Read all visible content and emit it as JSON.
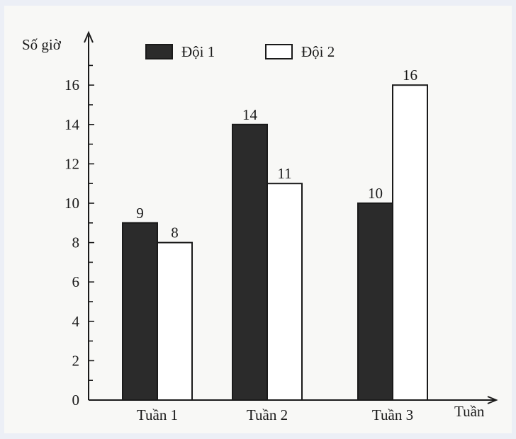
{
  "chart_data": {
    "type": "bar",
    "title": "",
    "xlabel": "Tuần",
    "ylabel": "Số giờ",
    "categories": [
      "Tuần 1",
      "Tuần 2",
      "Tuần 3"
    ],
    "series": [
      {
        "name": "Đội 1",
        "values": [
          9,
          14,
          10
        ],
        "color": "#2b2b2b"
      },
      {
        "name": "Đội 2",
        "values": [
          8,
          11,
          16
        ],
        "color": "#ffffff"
      }
    ],
    "ylim": [
      0,
      16
    ],
    "yticks": [
      0,
      2,
      4,
      6,
      8,
      10,
      12,
      14,
      16
    ],
    "legend_position": "top",
    "grid": false,
    "data_labels": true
  }
}
